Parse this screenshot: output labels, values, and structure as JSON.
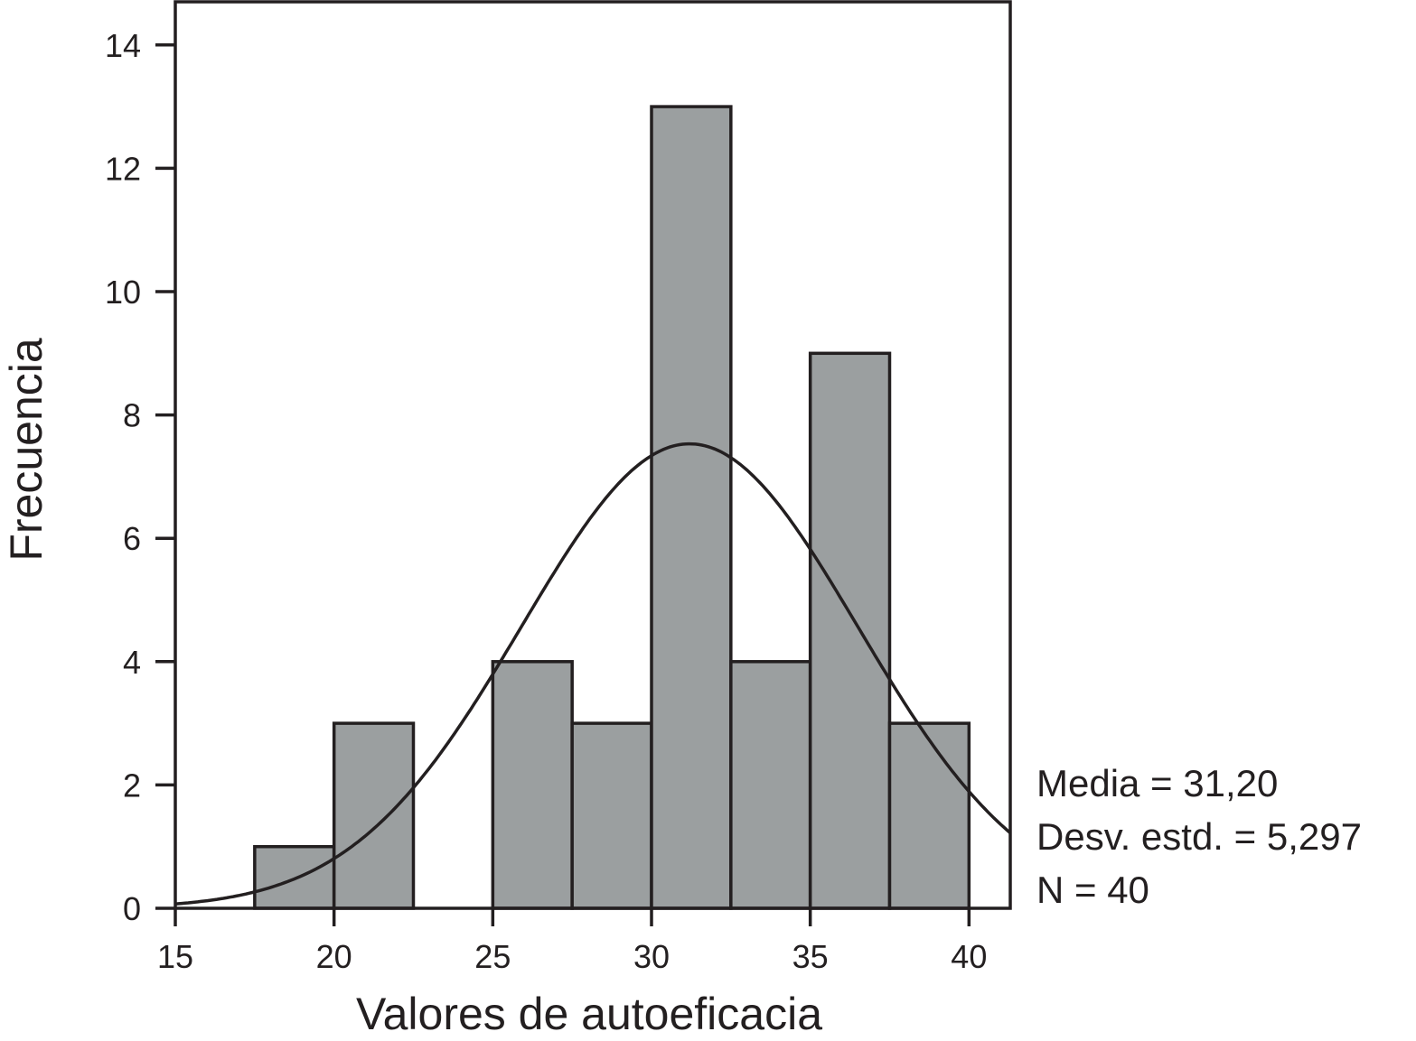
{
  "chart_data": {
    "type": "bar",
    "histogram": true,
    "title": "",
    "xlabel": "Valores de autoeficacia",
    "ylabel": "Frecuencia",
    "xlim": [
      15,
      41.3
    ],
    "ylim": [
      0,
      14.7
    ],
    "xticks": [
      15,
      20,
      25,
      30,
      35,
      40
    ],
    "yticks": [
      0,
      2,
      4,
      6,
      8,
      10,
      12,
      14
    ],
    "bin_width": 2.5,
    "bins": [
      {
        "start": 17.5,
        "end": 20.0,
        "count": 1
      },
      {
        "start": 20.0,
        "end": 22.5,
        "count": 3
      },
      {
        "start": 22.5,
        "end": 25.0,
        "count": 0
      },
      {
        "start": 25.0,
        "end": 27.5,
        "count": 4
      },
      {
        "start": 27.5,
        "end": 30.0,
        "count": 3
      },
      {
        "start": 30.0,
        "end": 32.5,
        "count": 13
      },
      {
        "start": 32.5,
        "end": 35.0,
        "count": 4
      },
      {
        "start": 35.0,
        "end": 37.5,
        "count": 9
      },
      {
        "start": 37.5,
        "end": 40.0,
        "count": 3
      }
    ],
    "normal_curve": {
      "mean": 31.2,
      "sd": 5.297,
      "n": 40
    },
    "grid": false,
    "bar_color": "#9b9fa0",
    "edge_color": "#231f20",
    "stats": [
      "Media = 31,20",
      "Desv. estd. = 5,297",
      "N = 40"
    ]
  }
}
